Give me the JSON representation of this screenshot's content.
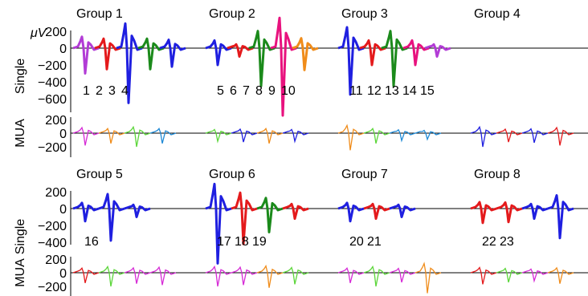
{
  "chart_data": {
    "type": "line",
    "unit_label": "μV",
    "row_labels": {
      "single": "Single",
      "mua": "MUA"
    },
    "single_ticks": [
      200,
      0,
      -200,
      -400,
      -600
    ],
    "single_ticks_bottom": [
      200,
      0,
      -200,
      -400
    ],
    "mua_ticks": [
      200,
      0,
      -200
    ],
    "colors": {
      "1": "#1f1fe0",
      "2": "#e41a1c",
      "3": "#1b8a1b",
      "4": "#b23cd6",
      "5": "#1f1fe0",
      "6": "#e41a1c",
      "7": "#1b8a1b",
      "8": "#b23cd6",
      "9": "#e8127e",
      "10": "#f08c1a",
      "11": "#1f1fe0",
      "12": "#e41a1c",
      "13": "#1b8a1b",
      "14": "#b23cd6",
      "15": "#e8127e",
      "16": "#1f1fe0",
      "17": "#1f1fe0",
      "18": "#e41a1c",
      "19": "#1b8a1b",
      "20": "#1f1fe0",
      "21": "#e41a1c",
      "22": "#1f1fe0",
      "23": "#e41a1c",
      "mua_blue": "#1f1fe0",
      "mua_red": "#e41a1c",
      "mua_green": "#5cd63a",
      "mua_magenta": "#d62bd6",
      "mua_orange": "#f08c1a",
      "mua_cyan": "#1f8ad6"
    },
    "groups": [
      {
        "title": "Group 1",
        "units": [
          "1",
          "2",
          "3",
          "4"
        ],
        "spikes": [
          {
            "c": "4",
            "amp": -300
          },
          {
            "c": "2",
            "amp": -250
          },
          {
            "c": "1",
            "amp": -650
          },
          {
            "c": "3",
            "amp": -250
          },
          {
            "c": "1",
            "amp": -220
          }
        ]
      },
      {
        "title": "Group 2",
        "units": [
          "5",
          "6",
          "7",
          "8",
          "9",
          "10"
        ],
        "spikes": [
          {
            "c": "5",
            "amp": -200
          },
          {
            "c": "6",
            "amp": -100
          },
          {
            "c": "7",
            "amp": -450
          },
          {
            "c": "9",
            "amp": -800
          },
          {
            "c": "10",
            "amp": -260
          }
        ]
      },
      {
        "title": "Group 3",
        "units": [
          "11",
          "12",
          "13",
          "14",
          "15"
        ],
        "spikes": [
          {
            "c": "11",
            "amp": -550
          },
          {
            "c": "12",
            "amp": -200
          },
          {
            "c": "13",
            "amp": -450
          },
          {
            "c": "15",
            "amp": -200
          },
          {
            "c": "14",
            "amp": -100
          }
        ]
      },
      {
        "title": "Group 4",
        "units": [],
        "spikes": []
      },
      {
        "title": "Group 5",
        "units": [
          "16"
        ],
        "spikes": [
          {
            "c": "16",
            "amp": -150
          },
          {
            "c": "16",
            "amp": -380
          },
          {
            "c": "16",
            "amp": -100
          }
        ]
      },
      {
        "title": "Group 6",
        "units": [
          "17",
          "18",
          "19"
        ],
        "spikes": [
          {
            "c": "17",
            "amp": -650
          },
          {
            "c": "18",
            "amp": -420
          },
          {
            "c": "19",
            "amp": -280
          },
          {
            "c": "18",
            "amp": -120
          }
        ]
      },
      {
        "title": "Group 7",
        "units": [
          "20",
          "21"
        ],
        "spikes": [
          {
            "c": "20",
            "amp": -150
          },
          {
            "c": "21",
            "amp": -120
          },
          {
            "c": "20",
            "amp": -100
          }
        ]
      },
      {
        "title": "Group 8",
        "units": [
          "22",
          "23"
        ],
        "spikes": [
          {
            "c": "23",
            "amp": -170
          },
          {
            "c": "23",
            "amp": -160
          },
          {
            "c": "22",
            "amp": -120
          },
          {
            "c": "22",
            "amp": -350
          }
        ]
      }
    ],
    "mua": [
      [
        {
          "c": "mua_magenta",
          "amp": -180
        },
        {
          "c": "mua_orange",
          "amp": -150
        },
        {
          "c": "mua_green",
          "amp": -200
        },
        {
          "c": "mua_cyan",
          "amp": -150
        }
      ],
      [
        {
          "c": "mua_green",
          "amp": -120
        },
        {
          "c": "mua_blue",
          "amp": -130
        },
        {
          "c": "mua_orange",
          "amp": -150
        },
        {
          "c": "mua_blue",
          "amp": -120
        }
      ],
      [
        {
          "c": "mua_orange",
          "amp": -250
        },
        {
          "c": "mua_green",
          "amp": -150
        },
        {
          "c": "mua_cyan",
          "amp": -110
        },
        {
          "c": "mua_cyan",
          "amp": -90
        }
      ],
      [
        {
          "c": "mua_blue",
          "amp": -200
        },
        {
          "c": "mua_red",
          "amp": -130
        },
        {
          "c": "mua_blue",
          "amp": -140
        },
        {
          "c": "mua_red",
          "amp": -180
        }
      ],
      [
        {
          "c": "mua_red",
          "amp": -150
        },
        {
          "c": "mua_green",
          "amp": -200
        },
        {
          "c": "mua_magenta",
          "amp": -160
        },
        {
          "c": "mua_magenta",
          "amp": -180
        }
      ],
      [
        {
          "c": "mua_magenta",
          "amp": -200
        },
        {
          "c": "mua_magenta",
          "amp": -180
        },
        {
          "c": "mua_orange",
          "amp": -220
        },
        {
          "c": "mua_green",
          "amp": -170
        }
      ],
      [
        {
          "c": "mua_magenta",
          "amp": -150
        },
        {
          "c": "mua_green",
          "amp": -200
        },
        {
          "c": "mua_magenta",
          "amp": -140
        },
        {
          "c": "mua_orange",
          "amp": -300
        }
      ],
      [
        {
          "c": "mua_red",
          "amp": -170
        },
        {
          "c": "mua_green",
          "amp": -140
        },
        {
          "c": "mua_magenta",
          "amp": -120
        },
        {
          "c": "mua_orange",
          "amp": -160
        }
      ]
    ]
  }
}
